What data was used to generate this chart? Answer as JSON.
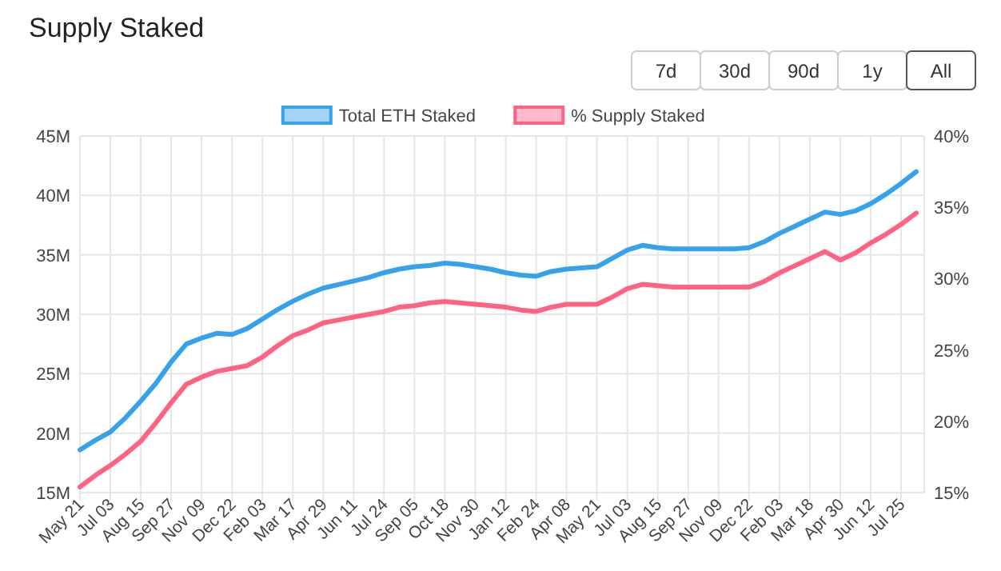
{
  "chart_data": {
    "type": "line",
    "title": "Supply Staked",
    "annotations": [
      "7d",
      "30d",
      "90d",
      "1y",
      "All"
    ],
    "categories": [
      "May 21",
      null,
      "Jul 03",
      null,
      "Aug 15",
      null,
      "Sep 27",
      null,
      "Nov 09",
      null,
      "Dec 22",
      null,
      "Feb 03",
      null,
      "Mar 17",
      null,
      "Apr 29",
      null,
      "Jun 11",
      null,
      "Jul 24",
      null,
      "Sep 05",
      null,
      "Oct 18",
      null,
      "Nov 30",
      null,
      "Jan 12",
      null,
      "Feb 24",
      null,
      "Apr 08",
      null,
      "May 21",
      null,
      "Jul 03",
      null,
      "Aug 15",
      null,
      "Sep 27",
      null,
      "Nov 09",
      null,
      "Dec 22",
      null,
      "Feb 03",
      null,
      "Mar 18",
      null,
      "Apr 30",
      null,
      "Jun 12",
      null,
      "Jul 25",
      null
    ],
    "series": [
      {
        "name": "Total ETH Staked",
        "color": "#36a2eb",
        "values": [
          18.6,
          19.4,
          20.1,
          21.3,
          22.7,
          24.2,
          26.0,
          27.5,
          28.0,
          28.4,
          28.3,
          28.8,
          29.6,
          30.4,
          31.1,
          31.7,
          32.2,
          32.5,
          32.8,
          33.1,
          33.5,
          33.8,
          34.0,
          34.1,
          34.3,
          34.2,
          34.0,
          33.8,
          33.5,
          33.3,
          33.2,
          33.6,
          33.8,
          33.9,
          34.0,
          34.7,
          35.4,
          35.8,
          35.6,
          35.5,
          35.5,
          35.5,
          35.5,
          35.5,
          35.6,
          36.1,
          36.8,
          37.4,
          38.0,
          38.6,
          38.4,
          38.7,
          39.3,
          40.1,
          41.0,
          42.0
        ]
      },
      {
        "name": "% Supply Staked",
        "color": "#ff6384",
        "axis": "y2",
        "values": [
          15.4,
          16.2,
          16.9,
          17.7,
          18.6,
          19.9,
          21.3,
          22.6,
          23.1,
          23.5,
          23.7,
          23.9,
          24.5,
          25.3,
          26.0,
          26.4,
          26.9,
          27.1,
          27.3,
          27.5,
          27.7,
          28.0,
          28.1,
          28.3,
          28.4,
          28.3,
          28.2,
          28.1,
          28.0,
          27.8,
          27.7,
          28.0,
          28.2,
          28.2,
          28.2,
          28.7,
          29.3,
          29.6,
          29.5,
          29.4,
          29.4,
          29.4,
          29.4,
          29.4,
          29.4,
          29.8,
          30.4,
          30.9,
          31.4,
          31.9,
          31.3,
          31.8,
          32.5,
          33.1,
          33.8,
          34.6
        ]
      }
    ],
    "ylim": [
      15,
      45
    ],
    "yticks": [
      {
        "value": 15,
        "label": "15M"
      },
      {
        "value": 20,
        "label": "20M"
      },
      {
        "value": 25,
        "label": "25M"
      },
      {
        "value": 30,
        "label": "30M"
      },
      {
        "value": 35,
        "label": "35M"
      },
      {
        "value": 40,
        "label": "40M"
      },
      {
        "value": 45,
        "label": "45M"
      }
    ],
    "y2lim": [
      15,
      40
    ],
    "y2ticks": [
      {
        "value": 15,
        "label": "15%"
      },
      {
        "value": 20,
        "label": "20%"
      },
      {
        "value": 25,
        "label": "25%"
      },
      {
        "value": 30,
        "label": "30%"
      },
      {
        "value": 35,
        "label": "35%"
      },
      {
        "value": 40,
        "label": "40%"
      }
    ],
    "grid": true,
    "legend": "top",
    "marker": "none",
    "line_style": "solid"
  }
}
